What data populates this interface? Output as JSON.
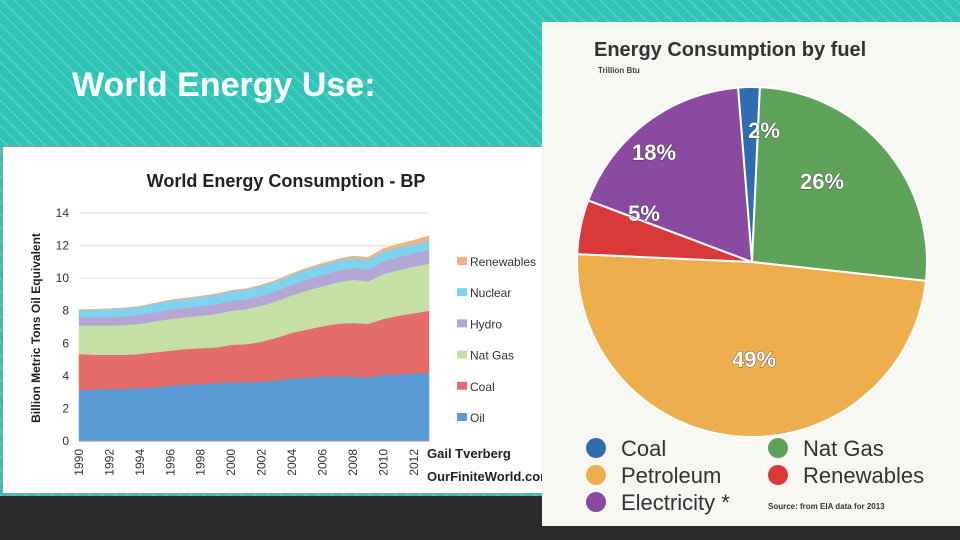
{
  "slide": {
    "title": "World Energy Use:"
  },
  "chart_data": [
    {
      "type": "area",
      "title": "World Energy Consumption - BP",
      "xlabel": "",
      "ylabel": "Billion Metric Tons Oil Equivalent",
      "ylim": [
        0,
        14
      ],
      "yticks": [
        "0",
        "2",
        "4",
        "6",
        "8",
        "10",
        "12",
        "14"
      ],
      "xticks": [
        "1990",
        "1992",
        "1994",
        "1996",
        "1998",
        "2000",
        "2002",
        "2004",
        "2006",
        "2008",
        "2010",
        "2012"
      ],
      "x": [
        1990,
        1991,
        1992,
        1993,
        1994,
        1995,
        1996,
        1997,
        1998,
        1999,
        2000,
        2001,
        2002,
        2003,
        2004,
        2005,
        2006,
        2007,
        2008,
        2009,
        2010,
        2011,
        2012,
        2013
      ],
      "stacking": "stacked",
      "series": [
        {
          "name": "Oil",
          "color": "#5b9bd5",
          "values": [
            3.15,
            3.15,
            3.2,
            3.2,
            3.25,
            3.3,
            3.4,
            3.45,
            3.5,
            3.55,
            3.6,
            3.6,
            3.65,
            3.7,
            3.85,
            3.9,
            3.95,
            4.0,
            3.95,
            3.9,
            4.05,
            4.1,
            4.15,
            4.2
          ]
        },
        {
          "name": "Coal",
          "color": "#e46c6a",
          "values": [
            2.2,
            2.15,
            2.1,
            2.1,
            2.1,
            2.15,
            2.15,
            2.2,
            2.2,
            2.2,
            2.3,
            2.35,
            2.45,
            2.65,
            2.8,
            2.95,
            3.1,
            3.2,
            3.3,
            3.3,
            3.45,
            3.6,
            3.7,
            3.8
          ]
        },
        {
          "name": "Nat Gas",
          "color": "#c5e0a5",
          "values": [
            1.75,
            1.8,
            1.8,
            1.82,
            1.85,
            1.9,
            1.95,
            1.95,
            2.0,
            2.05,
            2.1,
            2.15,
            2.2,
            2.25,
            2.3,
            2.4,
            2.45,
            2.55,
            2.65,
            2.6,
            2.75,
            2.8,
            2.85,
            2.9
          ]
        },
        {
          "name": "Hydro",
          "color": "#b4a7d6",
          "values": [
            0.5,
            0.5,
            0.52,
            0.53,
            0.54,
            0.56,
            0.57,
            0.58,
            0.59,
            0.6,
            0.61,
            0.61,
            0.62,
            0.63,
            0.65,
            0.67,
            0.69,
            0.7,
            0.72,
            0.74,
            0.77,
            0.79,
            0.83,
            0.86
          ]
        },
        {
          "name": "Nuclear",
          "color": "#7fd3ee",
          "values": [
            0.45,
            0.47,
            0.48,
            0.49,
            0.51,
            0.53,
            0.55,
            0.56,
            0.57,
            0.58,
            0.59,
            0.6,
            0.61,
            0.6,
            0.62,
            0.63,
            0.64,
            0.62,
            0.62,
            0.6,
            0.63,
            0.6,
            0.56,
            0.56
          ]
        },
        {
          "name": "Renewables",
          "color": "#f4b183",
          "values": [
            0.02,
            0.02,
            0.03,
            0.03,
            0.03,
            0.03,
            0.04,
            0.04,
            0.04,
            0.05,
            0.05,
            0.05,
            0.06,
            0.06,
            0.07,
            0.08,
            0.09,
            0.1,
            0.12,
            0.14,
            0.17,
            0.2,
            0.24,
            0.28
          ]
        }
      ],
      "legend_order": [
        "Renewables",
        "Nuclear",
        "Hydro",
        "Nat Gas",
        "Coal",
        "Oil"
      ],
      "credit": [
        "Gail Tverberg",
        "OurFiniteWorld.com"
      ]
    },
    {
      "type": "pie",
      "title": "Energy Consumption by fuel",
      "subtitle": "Trillion Btu",
      "slices": [
        {
          "label": "Coal",
          "value": 2,
          "display": "2%",
          "color": "#2e6db0"
        },
        {
          "label": "Nat Gas",
          "value": 26,
          "display": "26%",
          "color": "#5fa35a"
        },
        {
          "label": "Petroleum",
          "value": 49,
          "display": "49%",
          "color": "#eeae4e"
        },
        {
          "label": "Renewables",
          "value": 5,
          "display": "5%",
          "color": "#d93a39"
        },
        {
          "label": "Electricity",
          "value": 18,
          "display": "18%",
          "color": "#8a4a9f"
        }
      ],
      "legend": [
        {
          "label": "Coal",
          "color": "#2e6db0"
        },
        {
          "label": "Nat Gas",
          "color": "#5fa35a"
        },
        {
          "label": "Petroleum",
          "color": "#eeae4e"
        },
        {
          "label": "Renewables",
          "color": "#d93a39"
        },
        {
          "label": "Electricity *",
          "color": "#8a4a9f"
        }
      ],
      "source": "Source: from EIA data for 2013"
    }
  ]
}
